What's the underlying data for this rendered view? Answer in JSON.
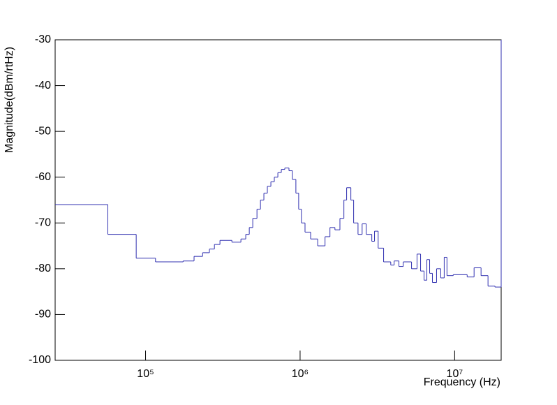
{
  "chart_data": {
    "type": "histogram",
    "x_label": "Frequency (Hz)",
    "y_label": "Magnitude(dBm/rtHz)",
    "log_x": true,
    "color": "#3030b0",
    "xlim": [
      26000,
      20000000
    ],
    "ylim": [
      -100,
      -30
    ],
    "xticks": [
      {
        "value": 100000,
        "label": "10⁵"
      },
      {
        "value": 1000000,
        "label": "10⁶"
      },
      {
        "value": 10000000,
        "label": "10⁷"
      }
    ],
    "yticks": [
      -100,
      -90,
      -80,
      -70,
      -60,
      -50,
      -40,
      -30
    ],
    "bins": [
      26000,
      57000,
      87000,
      116000,
      175000,
      206000,
      234000,
      259000,
      279000,
      303000,
      362000,
      414000,
      445000,
      469000,
      494000,
      526000,
      554000,
      583000,
      614000,
      647000,
      681000,
      718000,
      756000,
      796000,
      847000,
      892000,
      939000,
      979000,
      1020000,
      1076000,
      1170000,
      1300000,
      1450000,
      1560000,
      1680000,
      1810000,
      1920000,
      2000000,
      2130000,
      2220000,
      2370000,
      2520000,
      2680000,
      2910000,
      3030000,
      3200000,
      3470000,
      3860000,
      4060000,
      4360000,
      4650000,
      5260000,
      5710000,
      6020000,
      6340000,
      6610000,
      6890000,
      7180000,
      7640000,
      8130000,
      8560000,
      8920000,
      9790000,
      12050000,
      13360000,
      14820000,
      16440000,
      18240000,
      20000000
    ],
    "values": [
      -66,
      -72.5,
      -77.7,
      -78.5,
      -78.3,
      -77.3,
      -76.5,
      -75.7,
      -74.7,
      -73.8,
      -74.2,
      -73.5,
      -72.5,
      -71,
      -69,
      -67,
      -65,
      -63.5,
      -62,
      -61,
      -60,
      -59,
      -58.3,
      -58,
      -58.6,
      -60.5,
      -63.5,
      -67,
      -70,
      -72,
      -73.5,
      -75,
      -73,
      -71,
      -71.5,
      -69,
      -65,
      -62.3,
      -65,
      -70,
      -72.5,
      -70.2,
      -72.5,
      -74,
      -71.8,
      -75.5,
      -78.5,
      -79.2,
      -78.3,
      -79.5,
      -78.5,
      -80,
      -76.8,
      -80.5,
      -82.5,
      -78,
      -81,
      -83,
      -80,
      -82,
      -77.5,
      -81.5,
      -81.3,
      -81.8,
      -79.8,
      -81.5,
      -83.8,
      -84
    ]
  }
}
